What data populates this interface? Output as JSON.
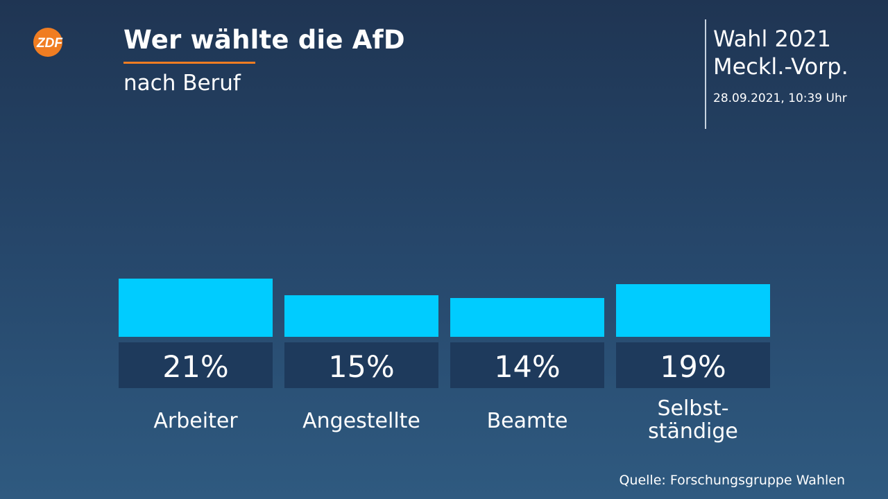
{
  "header": {
    "logo_text": "ZDF",
    "title": "Wer wählte die AfD",
    "subtitle": "nach Beruf"
  },
  "info": {
    "election_line1": "Wahl 2021",
    "election_line2": "Meckl.-Vorp.",
    "timestamp": "28.09.2021, 10:39 Uhr"
  },
  "footer": {
    "source": "Quelle: Forschungsgruppe Wahlen"
  },
  "colors": {
    "bar": "#00ccff",
    "label_box": "#1e3a5c",
    "accent": "#f07d22"
  },
  "chart_data": {
    "type": "bar",
    "title": "Wer wählte die AfD",
    "subtitle": "nach Beruf",
    "categories": [
      [
        "Arbeiter"
      ],
      [
        "Angestellte"
      ],
      [
        "Beamte"
      ],
      [
        "Selbst-",
        "ständige"
      ]
    ],
    "values": [
      21,
      15,
      14,
      19
    ],
    "value_labels": [
      "21%",
      "15%",
      "14%",
      "19%"
    ],
    "unit": "%",
    "ylim": [
      0,
      21
    ],
    "grid": false,
    "legend": "none"
  }
}
